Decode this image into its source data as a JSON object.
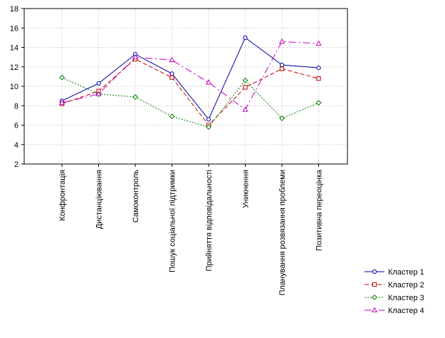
{
  "chart_data": {
    "type": "line",
    "categories": [
      "Конфронтація",
      "Дистанціювання",
      "Самоконтроль",
      "Пошук соціальної підтримки",
      "Прийняття відповідальності",
      "Уникнення",
      "Планування розвязання проблеми",
      "Позитивна переоцінка"
    ],
    "ylim": [
      2,
      18
    ],
    "yticks": [
      2,
      4,
      6,
      8,
      10,
      12,
      14,
      16,
      18
    ],
    "grid": true,
    "legend_position": "bottom-right",
    "series": [
      {
        "name": "Кластер  1",
        "color": "#0000a0",
        "dash": "solid",
        "marker": "circle",
        "values": [
          8.5,
          10.3,
          13.3,
          11.3,
          6.6,
          15.0,
          12.2,
          11.9
        ]
      },
      {
        "name": "Кластер  2",
        "color": "#c00000",
        "dash": "dashed",
        "marker": "square",
        "values": [
          8.2,
          9.5,
          12.8,
          10.9,
          6.0,
          9.9,
          11.8,
          10.8
        ]
      },
      {
        "name": "Кластер  3",
        "color": "#008000",
        "dash": "dotted",
        "marker": "diamond",
        "values": [
          10.9,
          9.2,
          8.9,
          6.9,
          5.8,
          10.6,
          6.7,
          8.3
        ]
      },
      {
        "name": "Кластер  4",
        "color": "#c000c0",
        "dash": "dashdot",
        "marker": "triangle",
        "values": [
          8.3,
          9.2,
          13.0,
          12.7,
          10.4,
          7.6,
          14.6,
          14.4
        ]
      }
    ]
  }
}
